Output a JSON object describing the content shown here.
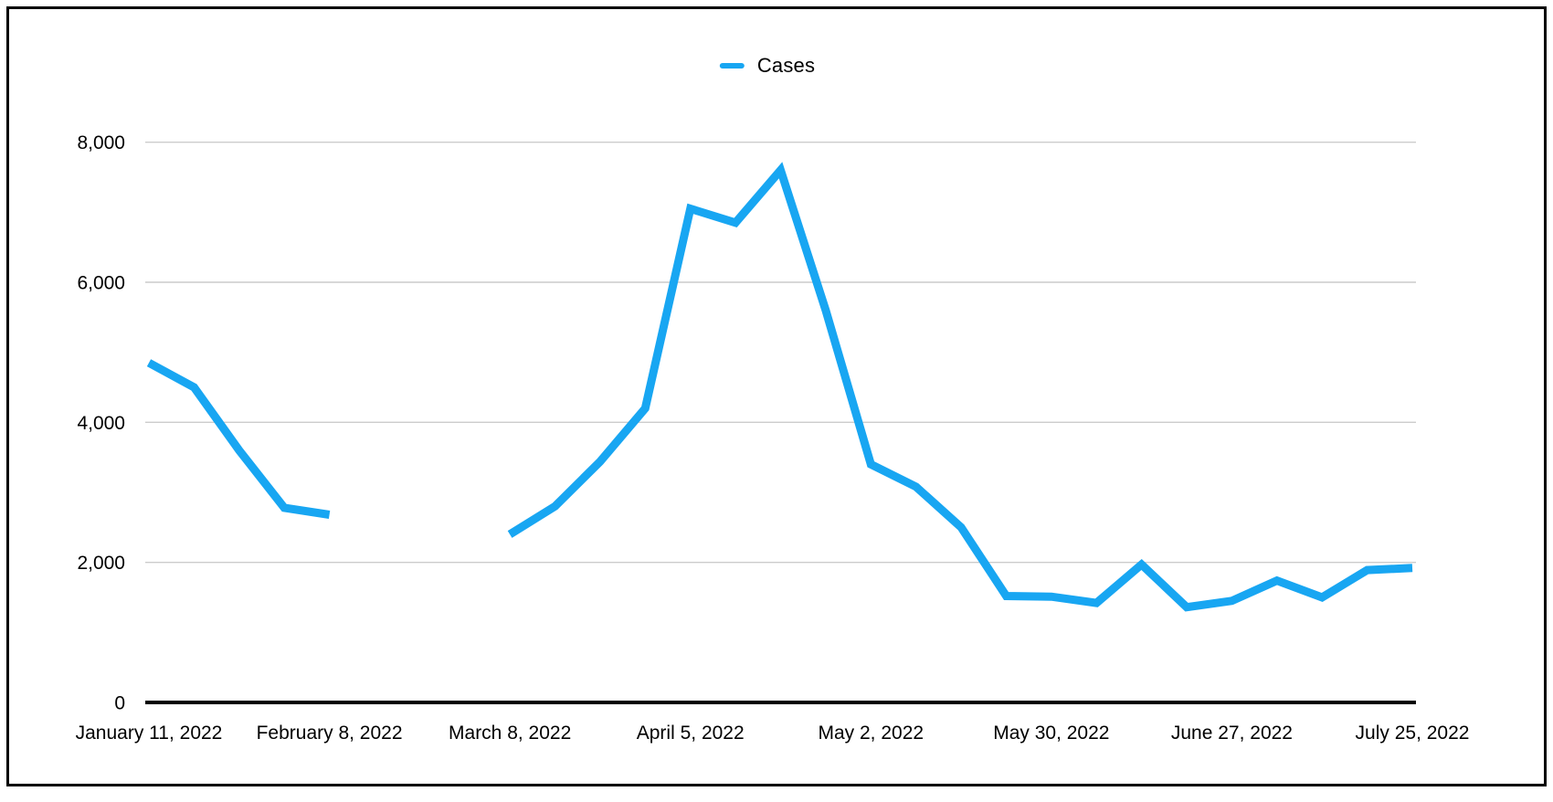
{
  "legend": {
    "label": "Cases",
    "marker_color": "#18A6F2"
  },
  "colors": {
    "series_blue": "#18A6F2",
    "gridline_gray": "#cccccc",
    "axis_black": "#000000",
    "background": "#ffffff"
  },
  "chart_data": {
    "type": "line",
    "title": "",
    "xlabel": "",
    "ylabel": "",
    "grid": "horizontal",
    "legend_position": "top-center",
    "ylim": [
      0,
      8600
    ],
    "y_ticks": [
      0,
      2000,
      4000,
      6000,
      8000
    ],
    "y_tick_labels": [
      "0",
      "2,000",
      "4,000",
      "6,000",
      "8,000"
    ],
    "x_tick_labels": [
      "January 11, 2022",
      "February 8, 2022",
      "March 8, 2022",
      "April 5, 2022",
      "May 2, 2022",
      "May 30, 2022",
      "June 27, 2022",
      "July 25, 2022"
    ],
    "x_tick_every_n_points": 4,
    "series": [
      {
        "name": "Cases",
        "color": "#18A6F2",
        "points": [
          {
            "date": "January 11, 2022",
            "value": 4850
          },
          {
            "date": "January 18, 2022",
            "value": 4500
          },
          {
            "date": "January 25, 2022",
            "value": 3600
          },
          {
            "date": "February 1, 2022",
            "value": 2780
          },
          {
            "date": "February 8, 2022",
            "value": 2680
          },
          {
            "date": "February 15, 2022",
            "value": null
          },
          {
            "date": "February 22, 2022",
            "value": null
          },
          {
            "date": "March 1, 2022",
            "value": null
          },
          {
            "date": "March 8, 2022",
            "value": 2400
          },
          {
            "date": "March 15, 2022",
            "value": 2800
          },
          {
            "date": "March 22, 2022",
            "value": 3440
          },
          {
            "date": "March 29, 2022",
            "value": 4200
          },
          {
            "date": "April 5, 2022",
            "value": 7050
          },
          {
            "date": "April 12, 2022",
            "value": 6850
          },
          {
            "date": "April 19, 2022",
            "value": 7600
          },
          {
            "date": "April 26, 2022",
            "value": 5600
          },
          {
            "date": "May 2, 2022",
            "value": 3400
          },
          {
            "date": "May 9, 2022",
            "value": 3080
          },
          {
            "date": "May 16, 2022",
            "value": 2500
          },
          {
            "date": "May 23, 2022",
            "value": 1520
          },
          {
            "date": "May 30, 2022",
            "value": 1510
          },
          {
            "date": "June 6, 2022",
            "value": 1420
          },
          {
            "date": "June 13, 2022",
            "value": 1970
          },
          {
            "date": "June 20, 2022",
            "value": 1360
          },
          {
            "date": "June 27, 2022",
            "value": 1450
          },
          {
            "date": "July 4, 2022",
            "value": 1740
          },
          {
            "date": "July 11, 2022",
            "value": 1500
          },
          {
            "date": "July 18, 2022",
            "value": 1890
          },
          {
            "date": "July 25, 2022",
            "value": 1920
          }
        ]
      }
    ]
  }
}
